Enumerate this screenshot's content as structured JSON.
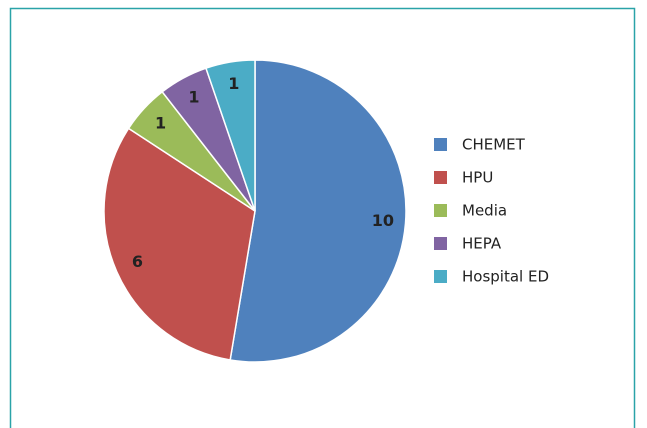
{
  "chart_data": {
    "type": "pie",
    "categories": [
      "CHEMET",
      "HPU",
      "Media",
      "HEPA",
      "Hospital ED"
    ],
    "values": [
      10,
      6,
      1,
      1,
      1
    ],
    "colors": [
      "#4f81bd",
      "#c0504d",
      "#9bbb59",
      "#8064a2",
      "#4bacc6"
    ],
    "legend": "right"
  }
}
